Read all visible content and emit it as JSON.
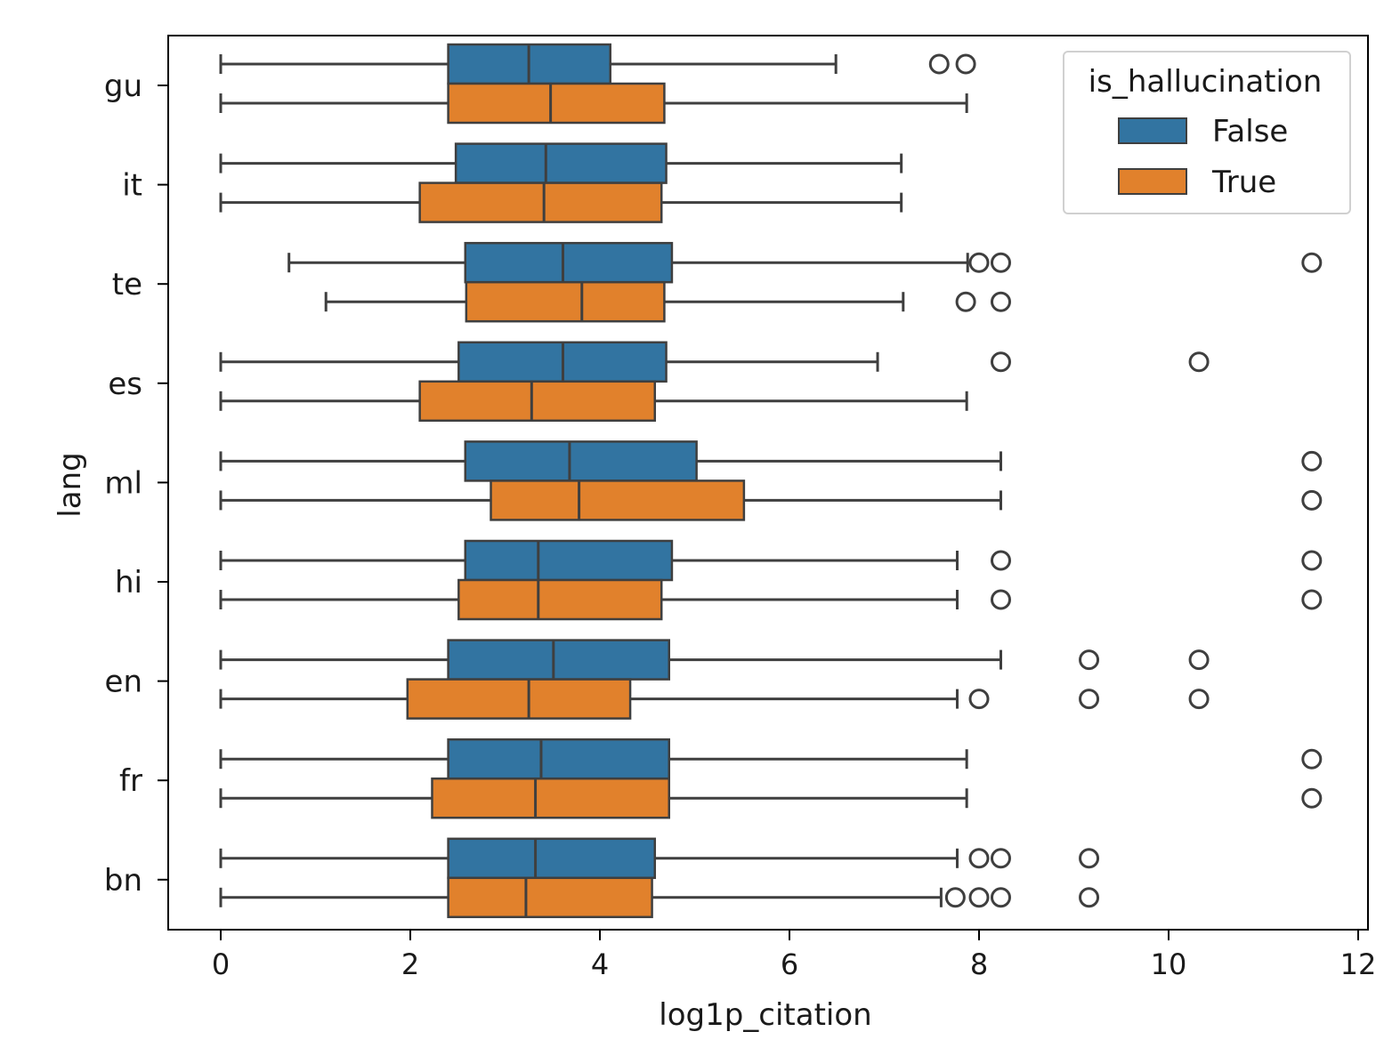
{
  "chart_data": {
    "type": "boxplot",
    "orientation": "horizontal",
    "title": "",
    "xlabel": "log1p_citation",
    "ylabel": "lang",
    "xlim": [
      -0.55,
      12.1
    ],
    "xticks": [
      "0",
      "2",
      "4",
      "6",
      "8",
      "10",
      "12"
    ],
    "xtick_values": [
      0,
      2,
      4,
      6,
      8,
      10,
      12
    ],
    "categories": [
      "gu",
      "it",
      "te",
      "es",
      "ml",
      "hi",
      "en",
      "fr",
      "bn"
    ],
    "grid": false,
    "legend": {
      "title": "is_hallucination",
      "placement": "top-right",
      "entries": [
        {
          "label": "False",
          "color": "#3274a1"
        },
        {
          "label": "True",
          "color": "#e1812c"
        }
      ]
    },
    "series": [
      {
        "name": "False",
        "color": "#3274a1",
        "boxes": [
          {
            "whislo": 0,
            "q1": 2.4,
            "med": 3.25,
            "q3": 4.11,
            "whishi": 6.49,
            "fliers": [
              7.58,
              7.86
            ]
          },
          {
            "whislo": 0,
            "q1": 2.48,
            "med": 3.43,
            "q3": 4.7,
            "whishi": 7.18,
            "fliers": []
          },
          {
            "whislo": 0.72,
            "q1": 2.58,
            "med": 3.61,
            "q3": 4.76,
            "whishi": 7.88,
            "fliers": [
              8.0,
              8.23,
              11.51
            ]
          },
          {
            "whislo": 0,
            "q1": 2.51,
            "med": 3.61,
            "q3": 4.7,
            "whishi": 6.93,
            "fliers": [
              8.23,
              10.32
            ]
          },
          {
            "whislo": 0,
            "q1": 2.58,
            "med": 3.68,
            "q3": 5.02,
            "whishi": 8.23,
            "fliers": [
              11.51
            ]
          },
          {
            "whislo": 0,
            "q1": 2.58,
            "med": 3.35,
            "q3": 4.76,
            "whishi": 7.77,
            "fliers": [
              8.23,
              11.51
            ]
          },
          {
            "whislo": 0,
            "q1": 2.4,
            "med": 3.51,
            "q3": 4.73,
            "whishi": 8.23,
            "fliers": [
              9.16,
              10.32
            ]
          },
          {
            "whislo": 0,
            "q1": 2.4,
            "med": 3.38,
            "q3": 4.73,
            "whishi": 7.87,
            "fliers": [
              11.51
            ]
          },
          {
            "whislo": 0,
            "q1": 2.4,
            "med": 3.32,
            "q3": 4.58,
            "whishi": 7.77,
            "fliers": [
              8.0,
              8.23,
              9.16
            ]
          }
        ]
      },
      {
        "name": "True",
        "color": "#e1812c",
        "boxes": [
          {
            "whislo": 0,
            "q1": 2.4,
            "med": 3.48,
            "q3": 4.68,
            "whishi": 7.87,
            "fliers": []
          },
          {
            "whislo": 0,
            "q1": 2.1,
            "med": 3.41,
            "q3": 4.65,
            "whishi": 7.18,
            "fliers": []
          },
          {
            "whislo": 1.11,
            "q1": 2.59,
            "med": 3.81,
            "q3": 4.68,
            "whishi": 7.2,
            "fliers": [
              7.86,
              8.23
            ]
          },
          {
            "whislo": 0,
            "q1": 2.1,
            "med": 3.28,
            "q3": 4.58,
            "whishi": 7.87,
            "fliers": []
          },
          {
            "whislo": 0,
            "q1": 2.85,
            "med": 3.78,
            "q3": 5.52,
            "whishi": 8.23,
            "fliers": [
              11.51
            ]
          },
          {
            "whislo": 0,
            "q1": 2.51,
            "med": 3.35,
            "q3": 4.65,
            "whishi": 7.77,
            "fliers": [
              8.23,
              11.51
            ]
          },
          {
            "whislo": 0,
            "q1": 1.97,
            "med": 3.25,
            "q3": 4.32,
            "whishi": 7.77,
            "fliers": [
              8.0,
              9.16,
              10.32
            ]
          },
          {
            "whislo": 0,
            "q1": 2.23,
            "med": 3.32,
            "q3": 4.73,
            "whishi": 7.87,
            "fliers": [
              11.51
            ]
          },
          {
            "whislo": 0,
            "q1": 2.4,
            "med": 3.22,
            "q3": 4.55,
            "whishi": 7.6,
            "fliers": [
              7.75,
              8.0,
              8.23,
              9.16
            ]
          }
        ]
      }
    ]
  }
}
